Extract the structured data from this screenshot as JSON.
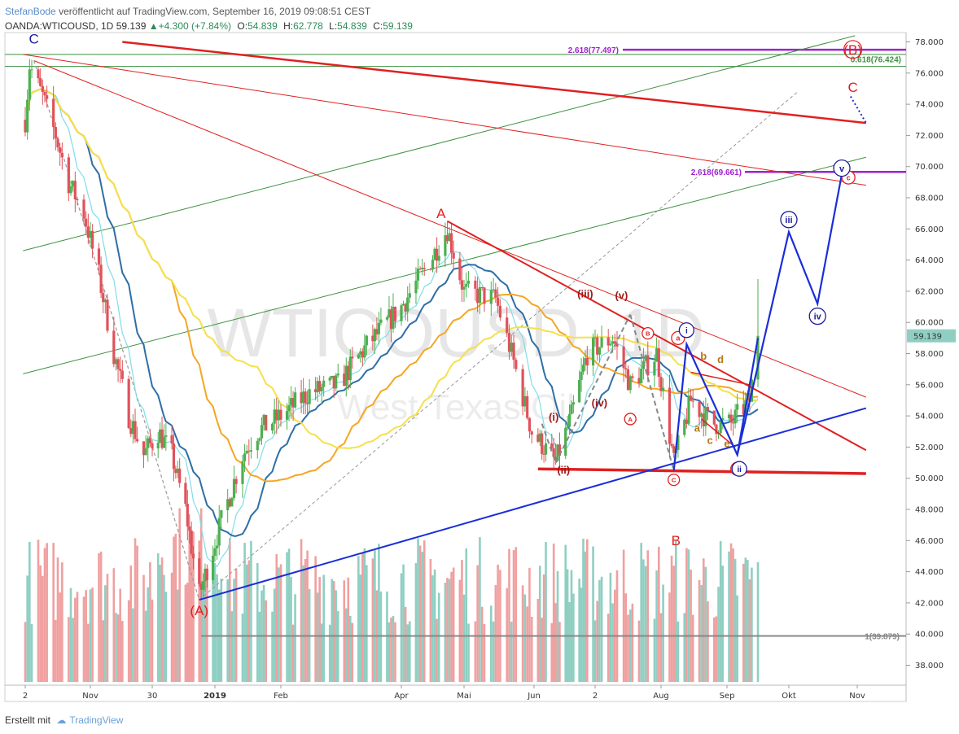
{
  "header": {
    "author": "StefanBode",
    "published": "veröffentlicht auf TradingView.com, September 16, 2019 09:08:51 CEST",
    "symbol": "OANDA:WTICOUSD, 1D",
    "last": "59.139",
    "change": "+4.300 (+7.84%)",
    "o_label": "O:",
    "o_value": "54.839",
    "h_label": "H:",
    "h_value": "62.778",
    "l_label": "L:",
    "l_value": "54.839",
    "c_label": "C:",
    "c_value": "59.139"
  },
  "footer": {
    "text": "Erstellt mit",
    "brand": "TradingView"
  },
  "watermark": {
    "symbol": "WTICOUSD, 1D",
    "name": "West Texas Oil"
  },
  "colors": {
    "bull": "#4caf50",
    "bear": "#e0525a",
    "vol_bull": "#8fcfc2",
    "vol_bear": "#f0a0a0",
    "sma_short": "#7fdde8",
    "sma_mid": "#2e6ea6",
    "sma_long1": "#f5a623",
    "sma_long2": "#f5e04a",
    "trend_red": "#e02020",
    "trend_green": "#3d9140",
    "wave_blue": "#1a2ed8",
    "fib_purple": "#a020d0"
  },
  "chart_data": {
    "type": "candlestick",
    "title": "OANDA:WTICOUSD, 1D",
    "ylim": [
      36.5,
      78.8
    ],
    "y_ticks": [
      "38.000",
      "40.000",
      "42.000",
      "44.000",
      "46.000",
      "48.000",
      "50.000",
      "52.000",
      "54.000",
      "56.000",
      "58.000",
      "60.000",
      "62.000",
      "64.000",
      "66.000",
      "68.000",
      "70.000",
      "72.000",
      "74.000",
      "76.000",
      "78.000"
    ],
    "x_ticks": [
      "2",
      "Nov",
      "30",
      "2019",
      "Feb",
      "Apr",
      "Mai",
      "Jun",
      "2",
      "Aug",
      "Sep",
      "Okt",
      "Nov"
    ],
    "last_price_label": "59.139",
    "price_path": [
      [
        "2018-10-02",
        73.0
      ],
      [
        "2018-10-04",
        76.5
      ],
      [
        "2018-10-10",
        74.5
      ],
      [
        "2018-10-16",
        72.0
      ],
      [
        "2018-10-22",
        69.0
      ],
      [
        "2018-10-29",
        67.0
      ],
      [
        "2018-11-05",
        63.0
      ],
      [
        "2018-11-12",
        58.0
      ],
      [
        "2018-11-19",
        54.0
      ],
      [
        "2018-11-26",
        51.5
      ],
      [
        "2018-12-03",
        53.0
      ],
      [
        "2018-12-10",
        51.5
      ],
      [
        "2018-12-17",
        48.0
      ],
      [
        "2018-12-24",
        42.5
      ],
      [
        "2018-12-31",
        45.5
      ],
      [
        "2019-01-07",
        48.5
      ],
      [
        "2019-01-14",
        51.5
      ],
      [
        "2019-01-21",
        53.0
      ],
      [
        "2019-02-01",
        54.0
      ],
      [
        "2019-02-15",
        55.5
      ],
      [
        "2019-03-01",
        56.0
      ],
      [
        "2019-03-15",
        58.5
      ],
      [
        "2019-04-01",
        61.0
      ],
      [
        "2019-04-15",
        64.0
      ],
      [
        "2019-04-23",
        66.0
      ],
      [
        "2019-05-01",
        62.0
      ],
      [
        "2019-05-15",
        61.5
      ],
      [
        "2019-05-22",
        58.0
      ],
      [
        "2019-05-31",
        53.0
      ],
      [
        "2019-06-12",
        51.0
      ],
      [
        "2019-06-20",
        54.0
      ],
      [
        "2019-06-28",
        58.0
      ],
      [
        "2019-07-10",
        59.0
      ],
      [
        "2019-07-18",
        56.0
      ],
      [
        "2019-07-30",
        58.0
      ],
      [
        "2019-08-07",
        51.0
      ],
      [
        "2019-08-15",
        55.0
      ],
      [
        "2019-08-25",
        53.5
      ],
      [
        "2019-09-03",
        53.5
      ],
      [
        "2019-09-12",
        55.0
      ],
      [
        "2019-09-16",
        59.1
      ]
    ],
    "moving_averages": [
      "short SMA",
      "medium SMA",
      "long SMA (orange)",
      "long SMA (yellow)"
    ],
    "levels": [
      {
        "label": "2.618(77.497)",
        "value": 77.497
      },
      {
        "label": "0.618(76.424)",
        "value": 76.424
      },
      {
        "label": "2.618(69.661)",
        "value": 69.661
      },
      {
        "label": "1(39.879)",
        "value": 39.879
      }
    ],
    "wave_labels": {
      "major": [
        "C",
        "A",
        "B",
        "(A)",
        "(B)",
        "C"
      ],
      "minor": [
        "(i)",
        "(ii)",
        "(iii)",
        "(iv)",
        "(v)"
      ],
      "circled_red": [
        "A",
        "B",
        "C",
        "a",
        "b",
        "c"
      ],
      "sub_abc": [
        "a",
        "b",
        "c",
        "d",
        "e"
      ],
      "circled_blue": [
        "i",
        "ii",
        "iii",
        "iv",
        "v"
      ]
    }
  }
}
